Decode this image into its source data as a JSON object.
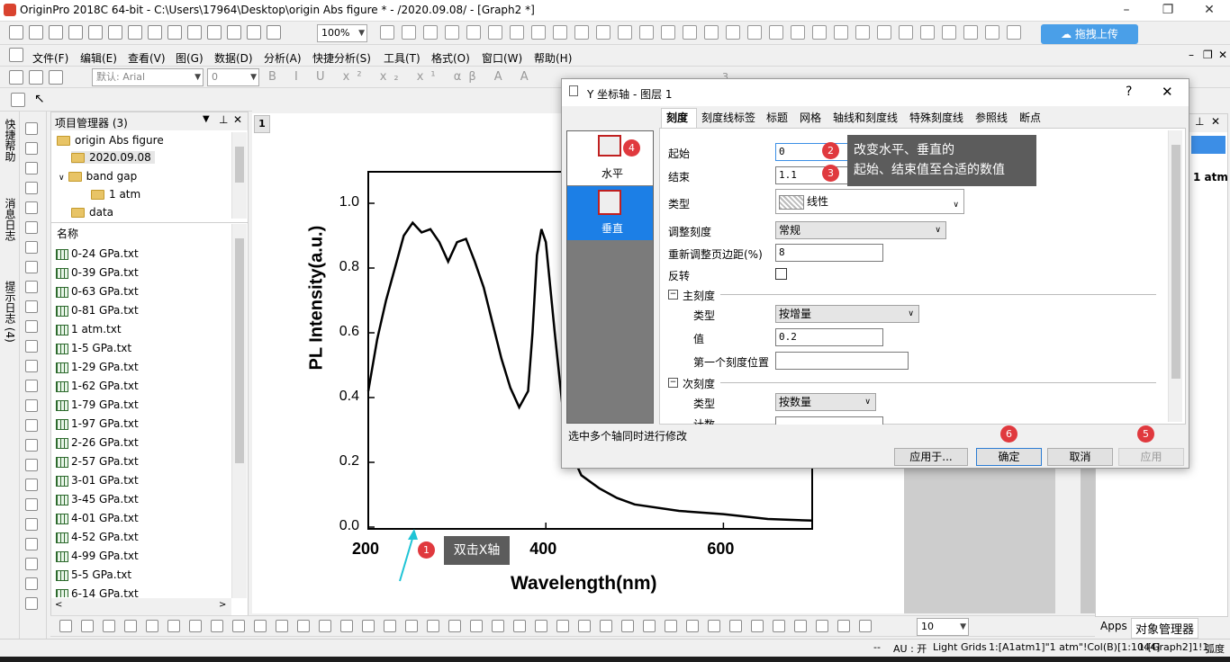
{
  "window": {
    "title": "OriginPro 2018C 64-bit - C:\\Users\\17964\\Desktop\\origin Abs figure * - /2020.09.08/ - [Graph2 *]",
    "minimize": "–",
    "maximize": "❐",
    "close": "✕"
  },
  "toolbar": {
    "zoom": "100%",
    "upload_button": "拖拽上传"
  },
  "menu": [
    "文件(F)",
    "编辑(E)",
    "查看(V)",
    "图(G)",
    "数据(D)",
    "分析(A)",
    "快捷分析(S)",
    "工具(T)",
    "格式(O)",
    "窗口(W)",
    "帮助(H)"
  ],
  "format_toolbar": {
    "font": "默认: Arial",
    "size": "0",
    "size2": "3"
  },
  "side_tabs": [
    "快捷帮助",
    "消息日志",
    "提示日志 (4)"
  ],
  "project_manager": {
    "title": "项目管理器 (3)",
    "tree": [
      {
        "label": "origin Abs figure"
      },
      {
        "label": "2020.09.08"
      },
      {
        "label": "band gap"
      },
      {
        "label": "1 atm"
      },
      {
        "label": "data"
      }
    ],
    "list_header": "名称",
    "files": [
      "0-24 GPa.txt",
      "0-39 GPa.txt",
      "0-63 GPa.txt",
      "0-81 GPa.txt",
      "1 atm.txt",
      "1-5 GPa.txt",
      "1-29 GPa.txt",
      "1-62 GPa.txt",
      "1-79 GPa.txt",
      "1-97 GPa.txt",
      "2-26 GPa.txt",
      "2-57 GPa.txt",
      "3-01 GPa.txt",
      "3-45 GPa.txt",
      "4-01 GPa.txt",
      "4-52 GPa.txt",
      "4-99 GPa.txt",
      "5-5 GPa.txt",
      "6-14 GPa.txt"
    ]
  },
  "graph": {
    "layer_number": "1",
    "annotation": "双击X轴",
    "annotation_badge": "1"
  },
  "chart_data": {
    "type": "line",
    "xlabel": "Wavelength(nm)",
    "ylabel": "PL Intensity(a.u.)",
    "xlim": [
      200,
      700
    ],
    "ylim": [
      0,
      1.1
    ],
    "x_ticks": [
      "200",
      "400",
      "600"
    ],
    "y_ticks": [
      "0.0",
      "0.2",
      "0.4",
      "0.6",
      "0.8",
      "1.0"
    ],
    "x": [
      200,
      210,
      220,
      230,
      240,
      250,
      260,
      270,
      280,
      290,
      300,
      310,
      320,
      330,
      340,
      350,
      360,
      370,
      380,
      385,
      390,
      395,
      400,
      410,
      420,
      430,
      440,
      460,
      480,
      500,
      550,
      600,
      650,
      700
    ],
    "y": [
      0.42,
      0.58,
      0.7,
      0.8,
      0.9,
      0.94,
      0.91,
      0.92,
      0.88,
      0.82,
      0.88,
      0.89,
      0.82,
      0.74,
      0.63,
      0.52,
      0.43,
      0.37,
      0.42,
      0.6,
      0.84,
      0.92,
      0.88,
      0.6,
      0.34,
      0.22,
      0.16,
      0.12,
      0.09,
      0.07,
      0.05,
      0.04,
      0.025,
      0.02
    ],
    "grid": false
  },
  "right_panel": {
    "item": "1 atm",
    "tabs": [
      "Apps",
      "对象管理器"
    ],
    "zoom_value": "10"
  },
  "dialog": {
    "title": "Y 坐标轴 - 图层 1",
    "help": "?",
    "close": "✕",
    "left_items": [
      {
        "label": "水平",
        "badge": "4"
      },
      {
        "label": "垂直"
      }
    ],
    "tabs": [
      "刻度",
      "刻度线标签",
      "标题",
      "网格",
      "轴线和刻度线",
      "特殊刻度线",
      "参照线",
      "断点"
    ],
    "fields": {
      "start_label": "起始",
      "start_value": "0",
      "end_label": "结束",
      "end_value": "1.1",
      "type_label": "类型",
      "type_value": "线性",
      "rescale_label": "调整刻度",
      "rescale_value": "常规",
      "margin_label": "重新调整页边距(%)",
      "margin_value": "8",
      "reverse_label": "反转"
    },
    "major": {
      "header": "主刻度",
      "type_label": "类型",
      "type_value": "按增量",
      "value_label": "值",
      "value_value": "0.2",
      "first_label": "第一个刻度位置",
      "first_value": ""
    },
    "minor": {
      "header": "次刻度",
      "type_label": "类型",
      "type_value": "按数量",
      "count_label": "计数"
    },
    "note_line1": "改变水平、垂直的",
    "note_line2": "起始、结束值至合适的数值",
    "badges": {
      "start": "2",
      "end": "3",
      "ok": "6",
      "apply": "5"
    },
    "footer_text": "选中多个轴同时进行修改",
    "buttons": {
      "apply_to": "应用于...",
      "ok": "确定",
      "cancel": "取消",
      "apply": "应用"
    }
  },
  "status": {
    "dashes": "--",
    "au": "AU : 开",
    "grid": "Light Grids",
    "cell": "1:[A1atm1]\"1 atm\"!Col(B)[1:1044]",
    "graph": "1:[Graph2]1!1",
    "unit": "弧度"
  }
}
